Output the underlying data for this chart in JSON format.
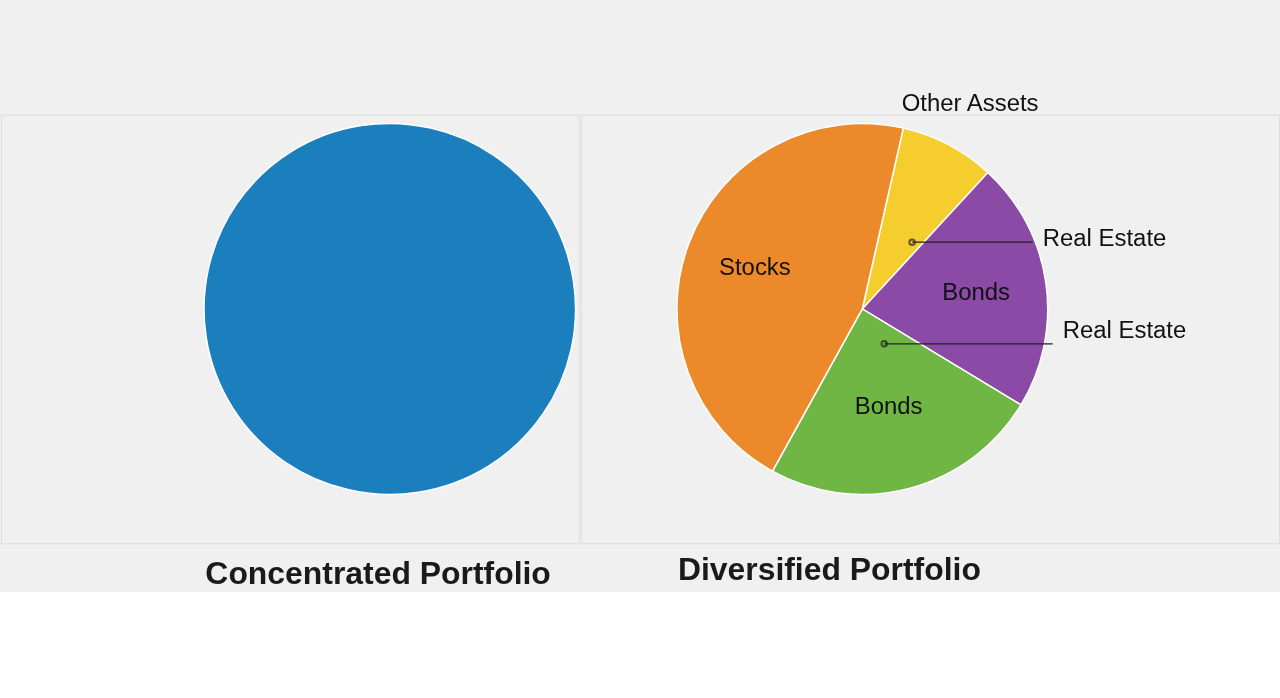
{
  "chart_data": [
    {
      "type": "pie",
      "title": "Concentrated Portfolio",
      "categories": [
        null
      ],
      "values": [
        100
      ],
      "colors": [
        "#1a7fbc"
      ],
      "legend": false
    },
    {
      "type": "pie",
      "title": "Diversified Portfolio",
      "categories": [
        "Other Assets",
        "Bonds",
        "Bonds",
        "Stocks"
      ],
      "values": [
        8.3,
        21.8,
        24.4,
        45.5
      ],
      "colors": [
        "#f5cd2c",
        "#8a4aa6",
        "#6fb644",
        "#ec8a2b"
      ],
      "legend": false,
      "annotations": [
        "Real Estate",
        "Real Estate"
      ]
    }
  ]
}
